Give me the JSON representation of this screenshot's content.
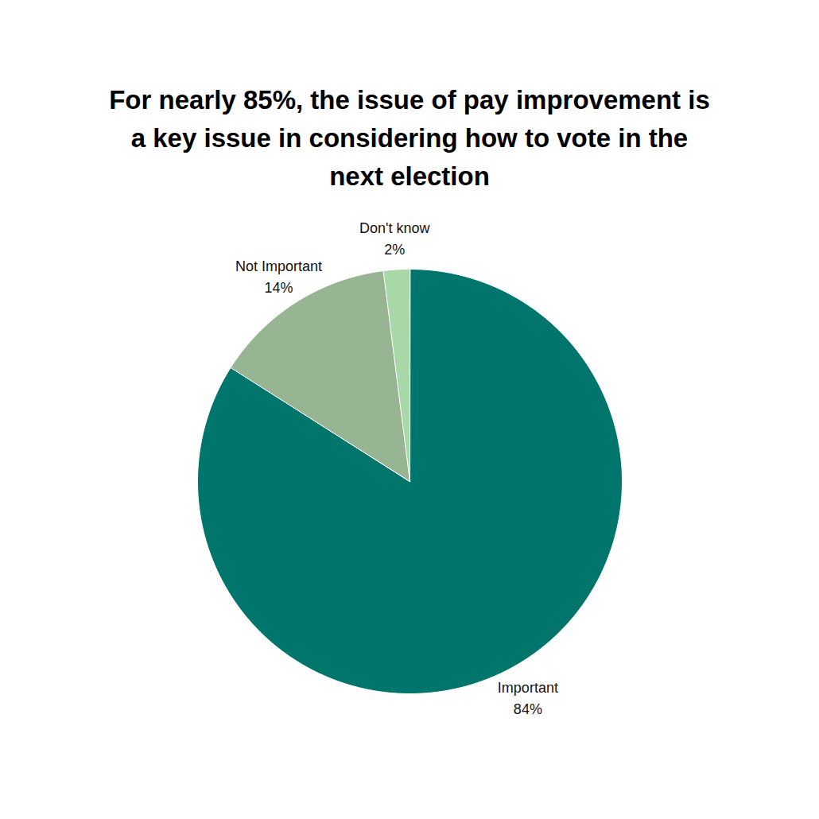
{
  "chart_data": {
    "type": "pie",
    "title": "For nearly 85%, the issue of pay improvement is a key issue in considering how to vote in the next election",
    "categories": [
      "Important",
      "Not Important",
      "Don't know"
    ],
    "values": [
      84,
      14,
      2
    ],
    "value_labels": [
      "84%",
      "14%",
      "2%"
    ],
    "colors": [
      "#00756b",
      "#97b593",
      "#a8d8a8"
    ],
    "data_labels": true
  }
}
